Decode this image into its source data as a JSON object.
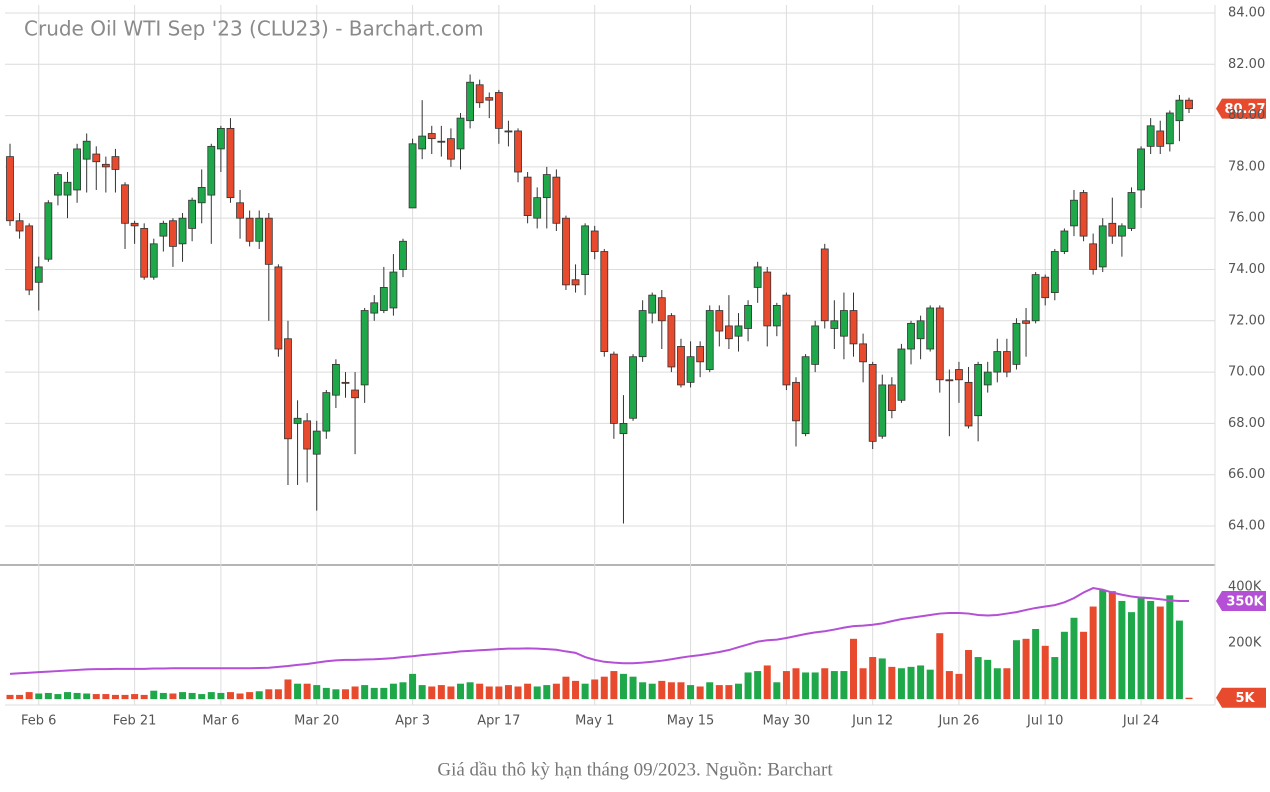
{
  "chart_data": [
    {
      "type": "candlestick",
      "title": "Crude Oil WTI Sep '23 (CLU23) - Barchart.com",
      "categories": [
        null,
        null,
        null,
        "Feb 6",
        null,
        null,
        null,
        null,
        null,
        null,
        null,
        null,
        null,
        "Feb 21",
        null,
        null,
        null,
        null,
        null,
        null,
        null,
        null,
        "Mar 6",
        null,
        null,
        null,
        null,
        null,
        null,
        null,
        null,
        null,
        "Mar 20",
        null,
        null,
        null,
        null,
        null,
        null,
        null,
        null,
        null,
        "Apr 3",
        null,
        null,
        null,
        null,
        null,
        null,
        null,
        null,
        "Apr 17",
        null,
        null,
        null,
        null,
        null,
        null,
        null,
        null,
        null,
        "May 1",
        null,
        null,
        null,
        null,
        null,
        null,
        null,
        null,
        null,
        "May 15",
        null,
        null,
        null,
        null,
        null,
        null,
        null,
        null,
        null,
        "May 30",
        null,
        null,
        null,
        null,
        null,
        null,
        null,
        null,
        "Jun 12",
        null,
        null,
        null,
        null,
        null,
        null,
        null,
        null,
        "Jun 26",
        null,
        null,
        null,
        null,
        null,
        null,
        null,
        null,
        "Jul 10",
        null,
        null,
        null,
        null,
        null,
        null,
        null,
        null,
        null,
        "Jul 24",
        null,
        null,
        null,
        null,
        null
      ],
      "open": [
        78.4,
        75.9,
        75.7,
        73.5,
        74.4,
        76.9,
        76.9,
        77.1,
        78.3,
        78.5,
        78.1,
        78.4,
        77.3,
        75.8,
        75.6,
        73.7,
        75.3,
        75.9,
        75.0,
        75.6,
        76.6,
        76.9,
        78.7,
        79.5,
        76.6,
        76.0,
        75.1,
        76.0,
        74.1,
        71.3,
        68.0,
        68.1,
        66.8,
        67.7,
        69.1,
        69.6,
        69.3,
        69.5,
        72.3,
        72.4,
        72.5,
        74.0,
        76.4,
        78.7,
        79.3,
        79.0,
        79.1,
        78.7,
        79.8,
        81.2,
        80.7,
        80.9,
        79.4,
        79.4,
        77.6,
        76.0,
        76.8,
        77.6,
        76.0,
        73.6,
        73.8,
        75.5,
        74.7,
        70.7,
        67.6,
        68.2,
        70.6,
        72.3,
        72.9,
        72.2,
        71.0,
        69.6,
        71.0,
        70.1,
        72.4,
        71.8,
        71.4,
        71.7,
        73.3,
        73.9,
        71.8,
        73.0,
        69.6,
        67.6,
        70.3,
        74.8,
        71.7,
        71.4,
        72.4,
        71.1,
        70.3,
        67.5,
        69.5,
        68.9,
        70.9,
        71.3,
        70.9,
        72.5,
        69.7,
        70.1,
        69.6,
        68.3,
        69.5,
        70.0,
        70.8,
        70.3,
        72.0,
        72.0,
        73.7,
        73.1,
        74.7,
        75.7,
        77.0,
        75.0,
        74.1,
        75.8,
        75.3,
        75.6,
        77.1,
        78.8,
        79.4,
        78.9,
        79.8,
        80.6
      ],
      "high": [
        78.9,
        76.2,
        75.8,
        74.5,
        76.7,
        77.8,
        77.8,
        78.9,
        79.3,
        78.8,
        78.4,
        78.7,
        77.4,
        75.9,
        75.8,
        75.2,
        75.9,
        76.0,
        76.2,
        76.8,
        77.9,
        78.9,
        79.6,
        79.9,
        77.1,
        76.3,
        76.3,
        76.2,
        74.2,
        72.0,
        68.9,
        68.4,
        68.1,
        69.3,
        70.5,
        70.0,
        70.0,
        72.5,
        73.0,
        74.1,
        74.6,
        75.2,
        79.1,
        80.6,
        79.6,
        79.6,
        79.5,
        80.1,
        81.6,
        81.4,
        80.9,
        81.0,
        79.8,
        79.5,
        77.8,
        77.2,
        78.0,
        77.9,
        76.1,
        74.2,
        75.8,
        75.7,
        74.8,
        70.8,
        69.1,
        70.7,
        72.8,
        73.1,
        73.2,
        72.3,
        71.3,
        71.2,
        71.2,
        72.6,
        72.6,
        73.0,
        72.3,
        72.8,
        74.3,
        74.1,
        72.7,
        73.1,
        69.8,
        70.7,
        72.0,
        75.0,
        72.8,
        73.1,
        73.1,
        71.5,
        70.4,
        69.9,
        69.8,
        71.1,
        72.0,
        72.2,
        72.6,
        72.6,
        70.1,
        70.4,
        70.2,
        70.4,
        70.4,
        71.3,
        71.3,
        72.1,
        72.5,
        73.9,
        73.8,
        74.8,
        75.6,
        77.1,
        77.1,
        75.4,
        76.0,
        76.8,
        75.8,
        77.2,
        78.8,
        79.9,
        79.8,
        80.2,
        80.8,
        80.7
      ],
      "low": [
        75.7,
        75.2,
        73.0,
        72.4,
        74.3,
        76.5,
        76.0,
        76.6,
        77.0,
        77.1,
        77.0,
        77.0,
        74.8,
        75.0,
        73.6,
        73.6,
        74.7,
        74.1,
        74.3,
        75.1,
        75.8,
        75.0,
        77.8,
        76.6,
        75.2,
        74.9,
        74.8,
        72.0,
        70.6,
        65.6,
        65.6,
        65.7,
        64.6,
        67.4,
        68.6,
        69.0,
        66.8,
        68.8,
        72.0,
        72.3,
        72.2,
        73.7,
        76.4,
        78.3,
        78.5,
        78.4,
        78.0,
        77.9,
        79.5,
        80.3,
        79.9,
        78.9,
        78.8,
        77.4,
        75.8,
        75.6,
        75.6,
        75.5,
        73.2,
        73.1,
        73.0,
        74.4,
        70.6,
        67.4,
        64.1,
        68.1,
        70.4,
        71.9,
        70.9,
        70.0,
        69.4,
        69.4,
        69.8,
        70.0,
        71.0,
        70.9,
        70.8,
        71.2,
        72.7,
        71.0,
        71.4,
        69.3,
        67.1,
        67.5,
        70.0,
        71.7,
        70.9,
        70.5,
        70.6,
        69.6,
        67.0,
        67.4,
        68.2,
        68.8,
        70.3,
        70.5,
        70.8,
        69.2,
        67.5,
        68.8,
        67.8,
        67.3,
        69.2,
        69.6,
        69.8,
        70.1,
        70.6,
        71.9,
        72.6,
        72.8,
        74.6,
        75.3,
        75.1,
        73.8,
        73.9,
        75.0,
        74.5,
        75.5,
        76.4,
        78.5,
        78.5,
        78.6,
        79.0,
        80.1
      ],
      "close": [
        75.9,
        75.5,
        73.2,
        74.1,
        76.6,
        77.7,
        77.4,
        78.7,
        79.0,
        78.2,
        78.0,
        77.9,
        75.8,
        75.7,
        73.7,
        75.0,
        75.8,
        74.9,
        76.0,
        76.7,
        77.2,
        78.8,
        79.5,
        76.8,
        76.0,
        75.1,
        76.0,
        74.2,
        70.9,
        67.4,
        68.2,
        67.0,
        67.7,
        69.2,
        70.3,
        69.6,
        69.0,
        72.4,
        72.7,
        73.3,
        73.9,
        75.1,
        78.9,
        79.2,
        79.1,
        79.0,
        78.3,
        79.9,
        81.3,
        80.5,
        80.6,
        79.5,
        79.4,
        77.8,
        76.1,
        76.8,
        77.7,
        75.8,
        73.4,
        73.4,
        75.7,
        74.7,
        70.8,
        68.0,
        68.0,
        70.6,
        72.4,
        73.0,
        72.0,
        70.2,
        69.5,
        70.6,
        70.4,
        72.4,
        71.6,
        71.3,
        71.8,
        72.6,
        74.1,
        71.8,
        72.6,
        69.5,
        68.1,
        70.6,
        71.8,
        72.0,
        72.0,
        72.4,
        71.1,
        70.4,
        67.3,
        69.5,
        68.5,
        70.9,
        71.9,
        72.0,
        72.5,
        69.7,
        69.7,
        69.7,
        67.9,
        70.3,
        70.0,
        70.8,
        70.0,
        71.9,
        71.9,
        73.8,
        72.9,
        74.7,
        75.5,
        76.7,
        75.3,
        74.0,
        75.7,
        75.3,
        75.7,
        77.0,
        78.7,
        79.6,
        78.8,
        80.1,
        80.6,
        80.27
      ],
      "up_color": "#1fa84a",
      "down_color": "#e84a2e",
      "ylim": [
        62.48,
        84.31
      ],
      "yticks": [
        {
          "value": 64,
          "label": "64.00"
        },
        {
          "value": 66,
          "label": "66.00"
        },
        {
          "value": 68,
          "label": "68.00"
        },
        {
          "value": 70,
          "label": "70.00"
        },
        {
          "value": 72,
          "label": "72.00"
        },
        {
          "value": 74,
          "label": "74.00"
        },
        {
          "value": 76,
          "label": "76.00"
        },
        {
          "value": 78,
          "label": "78.00"
        },
        {
          "value": 80,
          "label": "80.00"
        },
        {
          "value": 82,
          "label": "82.00"
        },
        {
          "value": 84,
          "label": "84.00"
        }
      ],
      "grid": true
    },
    {
      "type": "bar",
      "values": [
        15000,
        15000,
        25000,
        20000,
        22000,
        18000,
        25000,
        22000,
        20000,
        18000,
        18000,
        15000,
        15000,
        18000,
        15000,
        30000,
        22000,
        20000,
        25000,
        22000,
        18000,
        25000,
        22000,
        25000,
        20000,
        25000,
        28000,
        35000,
        35000,
        70000,
        55000,
        55000,
        50000,
        40000,
        35000,
        35000,
        45000,
        50000,
        40000,
        40000,
        55000,
        60000,
        90000,
        50000,
        45000,
        50000,
        45000,
        55000,
        60000,
        55000,
        45000,
        45000,
        50000,
        45000,
        55000,
        45000,
        50000,
        55000,
        80000,
        65000,
        55000,
        70000,
        80000,
        100000,
        90000,
        80000,
        60000,
        55000,
        65000,
        60000,
        60000,
        50000,
        45000,
        60000,
        50000,
        50000,
        55000,
        95000,
        100000,
        120000,
        60000,
        100000,
        110000,
        95000,
        95000,
        110000,
        100000,
        100000,
        215000,
        110000,
        150000,
        145000,
        115000,
        110000,
        115000,
        120000,
        105000,
        235000,
        100000,
        90000,
        175000,
        150000,
        140000,
        110000,
        110000,
        210000,
        215000,
        250000,
        190000,
        150000,
        240000,
        290000,
        240000,
        330000,
        390000,
        385000,
        350000,
        310000,
        365000,
        350000,
        330000,
        370000,
        280000,
        5000
      ],
      "value_labels": [
        null,
        null,
        null,
        null,
        null,
        null,
        null,
        null,
        null,
        null,
        null,
        null,
        null,
        null,
        null,
        null,
        null,
        null,
        null,
        null,
        null,
        null,
        null,
        null,
        null,
        null,
        null,
        null,
        null,
        null,
        null,
        null,
        null,
        null,
        null,
        null,
        null,
        null,
        null,
        null,
        null,
        null,
        null,
        null,
        null,
        null,
        null,
        null,
        null,
        null,
        null,
        null,
        null,
        null,
        null,
        null,
        null,
        null,
        null,
        null,
        null,
        null,
        null,
        null,
        null,
        null,
        null,
        null,
        null,
        null,
        null,
        null,
        null,
        null,
        null,
        null,
        null,
        null,
        null,
        null,
        null,
        null,
        null,
        null,
        null,
        null,
        null,
        null,
        null,
        null,
        null,
        null,
        null,
        null,
        null,
        null,
        null,
        null,
        null,
        null,
        null,
        null,
        null,
        null,
        null,
        null,
        null,
        null,
        null,
        null,
        null,
        null,
        null,
        null,
        null,
        null,
        null,
        null,
        null,
        null,
        null,
        null,
        null,
        "5K"
      ],
      "ma_values": [
        90000,
        92000,
        94000,
        96000,
        98000,
        100000,
        102000,
        104000,
        106000,
        107000,
        107000,
        108000,
        108000,
        108000,
        108000,
        109000,
        109000,
        110000,
        110000,
        110000,
        110000,
        110000,
        110000,
        110000,
        110000,
        110000,
        111000,
        112000,
        115000,
        118000,
        122000,
        125000,
        130000,
        135000,
        138000,
        140000,
        140000,
        141000,
        142000,
        144000,
        146000,
        150000,
        153000,
        157000,
        160000,
        163000,
        166000,
        170000,
        172000,
        174000,
        176000,
        178000,
        180000,
        180000,
        181000,
        180000,
        178000,
        176000,
        170000,
        165000,
        150000,
        140000,
        133000,
        130000,
        128000,
        128000,
        130000,
        133000,
        137000,
        142000,
        148000,
        153000,
        157000,
        162000,
        168000,
        175000,
        185000,
        195000,
        205000,
        210000,
        212000,
        218000,
        225000,
        232000,
        238000,
        242000,
        248000,
        255000,
        260000,
        262000,
        265000,
        270000,
        278000,
        285000,
        290000,
        295000,
        300000,
        305000,
        307000,
        307000,
        305000,
        300000,
        298000,
        300000,
        305000,
        310000,
        318000,
        325000,
        330000,
        335000,
        345000,
        360000,
        380000,
        396000,
        390000,
        380000,
        372000,
        366000,
        362000,
        360000,
        356000,
        352000,
        350000,
        350000
      ],
      "ma_value_labels": [
        null,
        null,
        null,
        null,
        null,
        null,
        null,
        null,
        null,
        null,
        null,
        null,
        null,
        null,
        null,
        null,
        null,
        null,
        null,
        null,
        null,
        null,
        null,
        null,
        null,
        null,
        null,
        null,
        null,
        null,
        null,
        null,
        null,
        null,
        null,
        null,
        null,
        null,
        null,
        null,
        null,
        null,
        null,
        null,
        null,
        null,
        null,
        null,
        null,
        null,
        null,
        null,
        null,
        null,
        null,
        null,
        null,
        null,
        null,
        null,
        null,
        null,
        null,
        null,
        null,
        null,
        null,
        null,
        null,
        null,
        null,
        null,
        null,
        null,
        null,
        null,
        null,
        null,
        null,
        null,
        null,
        null,
        null,
        null,
        null,
        null,
        null,
        null,
        null,
        null,
        null,
        null,
        null,
        null,
        null,
        null,
        null,
        null,
        null,
        null,
        null,
        null,
        null,
        null,
        null,
        null,
        null,
        null,
        null,
        null,
        null,
        null,
        null,
        null,
        null,
        null,
        null,
        null,
        null,
        null,
        null,
        null,
        null,
        "350K"
      ],
      "ma_color": "#b44fd6",
      "ylim": [
        -21000,
        471000
      ],
      "yticks": [
        {
          "value": 200000,
          "label": "200K"
        },
        {
          "value": 400000,
          "label": "400K"
        }
      ]
    }
  ],
  "caption": "Giá dầu thô kỳ hạn tháng 09/2023. Nguồn: Barchart"
}
